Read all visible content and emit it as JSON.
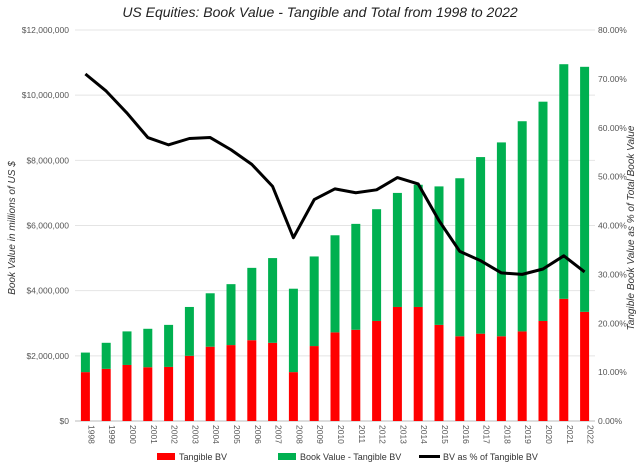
{
  "chart_data": {
    "type": "bar",
    "title": "US Equities: Book Value - Tangible and Total from 1998 to 2022",
    "ylabel": "Book Value in millions of US $",
    "y2label": "Tangible Book Value as % of Total Book Value",
    "ylim": [
      0,
      12000000
    ],
    "y2lim": [
      0,
      80
    ],
    "yticks": [
      "$0",
      "$2,000,000",
      "$4,000,000",
      "$6,000,000",
      "$8,000,000",
      "$10,000,000",
      "$12,000,000"
    ],
    "y2ticks": [
      "0.00%",
      "10.00%",
      "20.00%",
      "30.00%",
      "40.00%",
      "50.00%",
      "60.00%",
      "70.00%",
      "80.00%"
    ],
    "grid": true,
    "legend_position": "bottom",
    "categories": [
      "1998",
      "1999",
      "2000",
      "2001",
      "2002",
      "2003",
      "2004",
      "2005",
      "2006",
      "2007",
      "2008",
      "2009",
      "2010",
      "2011",
      "2012",
      "2013",
      "2014",
      "2015",
      "2016",
      "2017",
      "2018",
      "2019",
      "2020",
      "2021",
      "2022"
    ],
    "series": [
      {
        "name": "Tangible BV",
        "type": "bar",
        "stack": true,
        "color": "#ff0000",
        "axis": "left",
        "values": [
          1500000,
          1600000,
          1720000,
          1650000,
          1660000,
          2000000,
          2280000,
          2330000,
          2480000,
          2400000,
          1500000,
          2300000,
          2720000,
          2800000,
          3070000,
          3500000,
          3500000,
          2950000,
          2600000,
          2680000,
          2600000,
          2750000,
          3070000,
          3750000,
          3350000
        ]
      },
      {
        "name": "Book Value - Tangible BV",
        "type": "bar",
        "stack": true,
        "color": "#00b050",
        "axis": "left",
        "values": [
          600000,
          800000,
          1030000,
          1180000,
          1290000,
          1500000,
          1640000,
          1870000,
          2220000,
          2600000,
          2560000,
          2750000,
          2980000,
          3250000,
          3430000,
          3500000,
          3750000,
          4250000,
          4850000,
          5420000,
          5950000,
          6450000,
          6730000,
          7200000,
          7520000
        ]
      },
      {
        "name": "BV as % of Tangible BV",
        "type": "line",
        "color": "#000000",
        "axis": "right",
        "values": [
          71,
          67.5,
          63,
          58,
          56.5,
          57.8,
          58,
          55.5,
          52.5,
          48,
          37.5,
          45.3,
          47.5,
          46.7,
          47.3,
          49.8,
          48.5,
          41,
          34.7,
          32.8,
          30.3,
          30,
          31.1,
          33.8,
          30.5
        ]
      }
    ]
  }
}
